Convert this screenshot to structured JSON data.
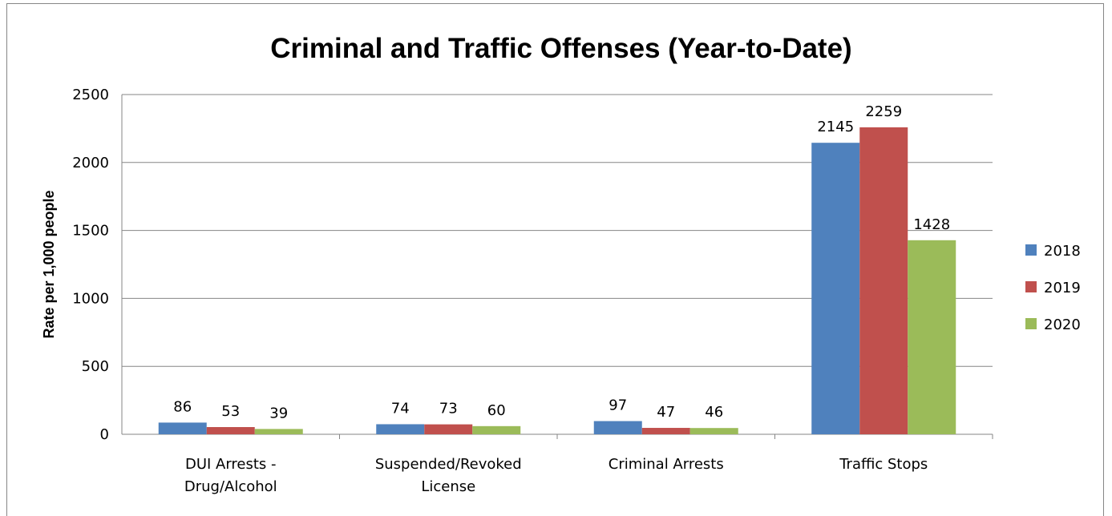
{
  "chart_data": {
    "type": "bar",
    "title": "Criminal and Traffic Offenses (Year-to-Date)",
    "xlabel": "",
    "ylabel": "Rate per 1,000 people",
    "ylim": [
      0,
      2500
    ],
    "yticks": [
      0,
      500,
      1000,
      1500,
      2000,
      2500
    ],
    "grid": true,
    "legend": "right",
    "categories": [
      [
        "DUI Arrests -",
        "Drug/Alcohol"
      ],
      [
        "Suspended/Revoked",
        "License"
      ],
      [
        "Criminal Arrests"
      ],
      [
        "Traffic Stops"
      ]
    ],
    "series": [
      {
        "name": "2018",
        "color": "#4F81BD",
        "values": [
          86,
          74,
          97,
          2145
        ]
      },
      {
        "name": "2019",
        "color": "#C0504D",
        "values": [
          53,
          73,
          47,
          2259
        ]
      },
      {
        "name": "2020",
        "color": "#9BBB59",
        "values": [
          39,
          60,
          46,
          1428
        ]
      }
    ]
  }
}
